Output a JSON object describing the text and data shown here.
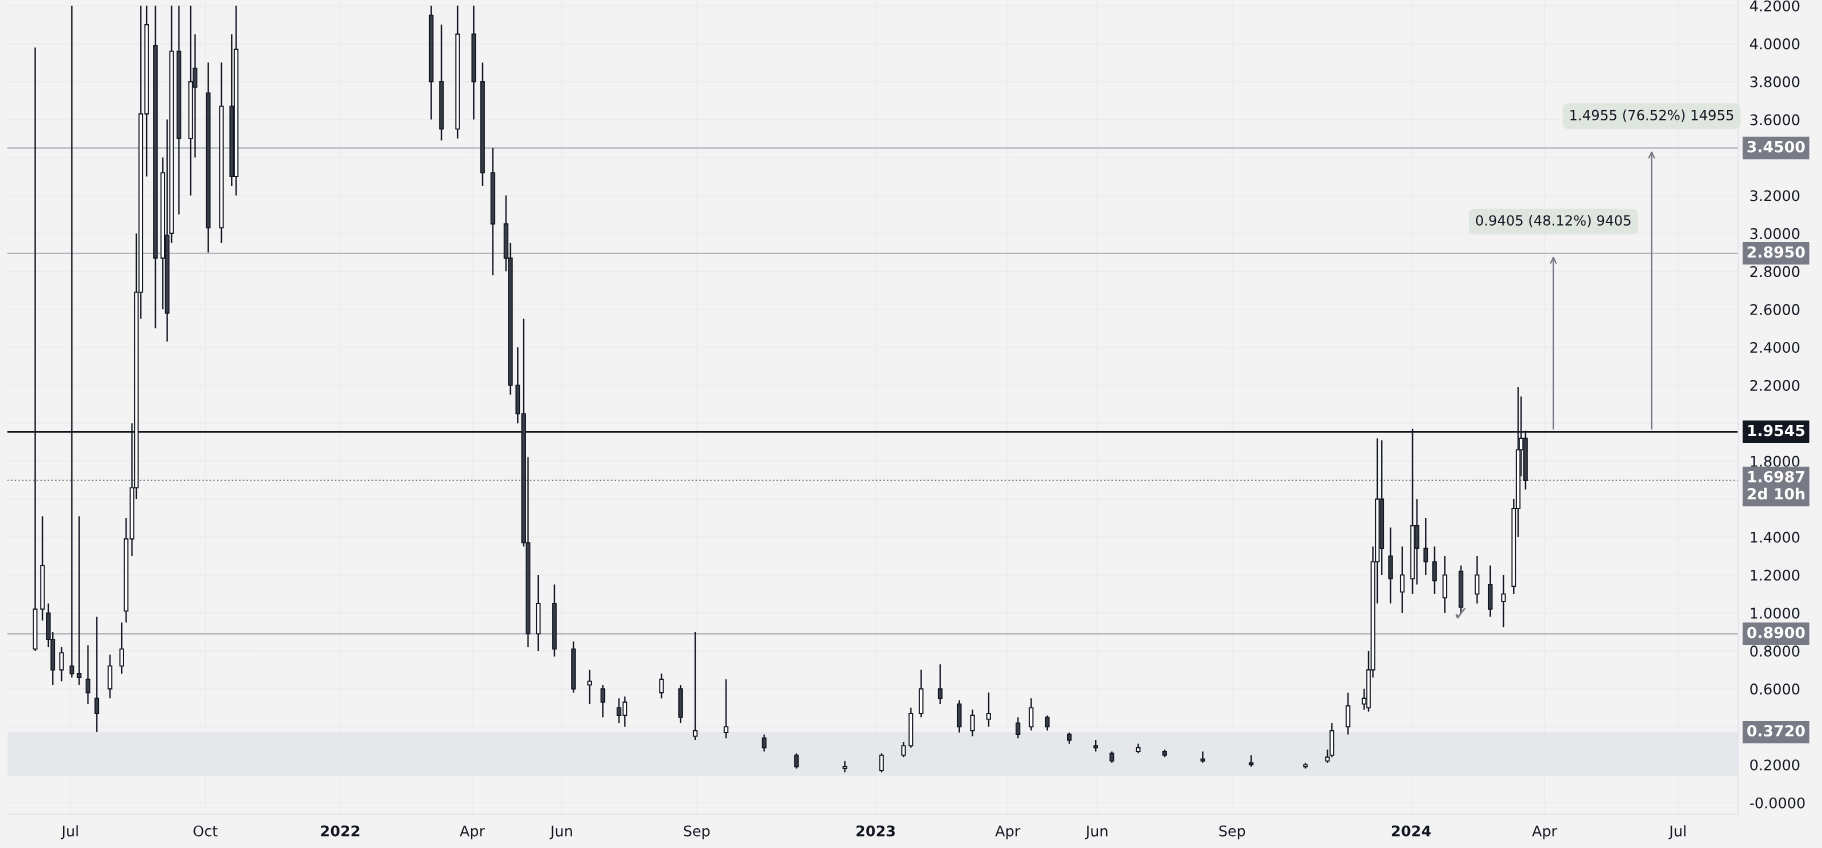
{
  "chart_data": {
    "type": "candlestick",
    "x": [
      "2021-06-07",
      "2021-06-12",
      "2021-06-16",
      "2021-06-19",
      "2021-06-25",
      "2021-07-02",
      "2021-07-07",
      "2021-07-13",
      "2021-07-19",
      "2021-07-28",
      "2021-08-05",
      "2021-08-08",
      "2021-08-12",
      "2021-08-15",
      "2021-08-18",
      "2021-08-22",
      "2021-08-28",
      "2021-09-02",
      "2021-09-05",
      "2021-09-08",
      "2021-09-13",
      "2021-09-21",
      "2021-09-24",
      "2021-10-03",
      "2021-10-12",
      "2021-10-19",
      "2021-10-22",
      "2022-03-04",
      "2022-03-11",
      "2022-03-22",
      "2022-04-02",
      "2022-04-08",
      "2022-04-15",
      "2022-04-24",
      "2022-04-27",
      "2022-05-02",
      "2022-05-06",
      "2022-05-09",
      "2022-05-16",
      "2022-05-27",
      "2022-06-09",
      "2022-06-20",
      "2022-06-29",
      "2022-07-10",
      "2022-07-14",
      "2022-08-08",
      "2022-08-21",
      "2022-08-31",
      "2022-09-21",
      "2022-10-17",
      "2022-11-08",
      "2022-12-11",
      "2023-01-05",
      "2023-01-20",
      "2023-01-25",
      "2023-02-01",
      "2023-02-14",
      "2023-02-27",
      "2023-03-08",
      "2023-03-19",
      "2023-04-08",
      "2023-04-17",
      "2023-04-28",
      "2023-05-13",
      "2023-05-31",
      "2023-06-11",
      "2023-06-29",
      "2023-07-17",
      "2023-08-12",
      "2023-09-14",
      "2023-10-21",
      "2023-11-05",
      "2023-11-08",
      "2023-11-19",
      "2023-11-30",
      "2023-12-03",
      "2023-12-06",
      "2023-12-09",
      "2023-12-12",
      "2023-12-18",
      "2023-12-26",
      "2024-01-02",
      "2024-01-05",
      "2024-01-11",
      "2024-01-17",
      "2024-01-24",
      "2024-02-04",
      "2024-02-15",
      "2024-02-24",
      "2024-03-04",
      "2024-03-11",
      "2024-03-14",
      "2024-03-16",
      "2024-03-19"
    ],
    "ohlc": [
      [
        0.81,
        3.98,
        0.8,
        1.02
      ],
      [
        1.02,
        1.51,
        0.96,
        1.25
      ],
      [
        1.0,
        1.05,
        0.82,
        0.86
      ],
      [
        0.86,
        0.9,
        0.62,
        0.7
      ],
      [
        0.7,
        0.82,
        0.64,
        0.79
      ],
      [
        0.72,
        4.2,
        0.66,
        0.68
      ],
      [
        0.68,
        1.51,
        0.62,
        0.66
      ],
      [
        0.65,
        0.83,
        0.52,
        0.58
      ],
      [
        0.55,
        0.98,
        0.372,
        0.47
      ],
      [
        0.6,
        0.78,
        0.55,
        0.72
      ],
      [
        0.72,
        0.95,
        0.68,
        0.81
      ],
      [
        1.01,
        1.5,
        0.95,
        1.39
      ],
      [
        1.39,
        2.0,
        1.3,
        1.66
      ],
      [
        1.66,
        3.0,
        1.6,
        2.69
      ],
      [
        2.69,
        4.2,
        2.55,
        3.63
      ],
      [
        3.63,
        4.2,
        3.3,
        4.1
      ],
      [
        3.99,
        4.2,
        2.5,
        2.87
      ],
      [
        2.87,
        3.4,
        2.6,
        3.32
      ],
      [
        2.99,
        3.6,
        2.43,
        2.58
      ],
      [
        3.0,
        4.2,
        2.95,
        3.96
      ],
      [
        3.96,
        4.2,
        3.1,
        3.5
      ],
      [
        3.5,
        4.2,
        3.2,
        3.8
      ],
      [
        3.87,
        4.05,
        3.4,
        3.77
      ],
      [
        3.74,
        3.9,
        2.9,
        3.03
      ],
      [
        3.03,
        3.9,
        2.95,
        3.67
      ],
      [
        3.67,
        4.05,
        3.25,
        3.3
      ],
      [
        3.3,
        4.2,
        3.2,
        3.97
      ],
      [
        4.15,
        4.2,
        3.6,
        3.8
      ],
      [
        3.8,
        4.1,
        3.49,
        3.55
      ],
      [
        3.55,
        4.2,
        3.5,
        4.05
      ],
      [
        4.05,
        4.2,
        3.6,
        3.8
      ],
      [
        3.8,
        3.9,
        3.25,
        3.32
      ],
      [
        3.32,
        3.45,
        2.78,
        3.05
      ],
      [
        3.05,
        3.2,
        2.8,
        2.87
      ],
      [
        2.87,
        2.95,
        2.15,
        2.2
      ],
      [
        2.2,
        2.4,
        2.0,
        2.05
      ],
      [
        2.05,
        2.55,
        1.35,
        1.37
      ],
      [
        1.37,
        1.82,
        0.82,
        0.89
      ],
      [
        0.89,
        1.2,
        0.8,
        1.05
      ],
      [
        1.05,
        1.15,
        0.77,
        0.81
      ],
      [
        0.81,
        0.85,
        0.58,
        0.6
      ],
      [
        0.62,
        0.7,
        0.52,
        0.64
      ],
      [
        0.6,
        0.62,
        0.45,
        0.53
      ],
      [
        0.5,
        0.55,
        0.42,
        0.46
      ],
      [
        0.46,
        0.56,
        0.4,
        0.53
      ],
      [
        0.58,
        0.68,
        0.55,
        0.65
      ],
      [
        0.6,
        0.62,
        0.42,
        0.45
      ],
      [
        0.35,
        0.9,
        0.33,
        0.38
      ],
      [
        0.37,
        0.65,
        0.34,
        0.4
      ],
      [
        0.34,
        0.36,
        0.27,
        0.29
      ],
      [
        0.25,
        0.26,
        0.18,
        0.19
      ],
      [
        0.18,
        0.22,
        0.16,
        0.19
      ],
      [
        0.17,
        0.26,
        0.16,
        0.25
      ],
      [
        0.25,
        0.32,
        0.24,
        0.3
      ],
      [
        0.3,
        0.5,
        0.29,
        0.47
      ],
      [
        0.47,
        0.7,
        0.45,
        0.6
      ],
      [
        0.6,
        0.73,
        0.52,
        0.55
      ],
      [
        0.52,
        0.54,
        0.37,
        0.4
      ],
      [
        0.38,
        0.49,
        0.35,
        0.46
      ],
      [
        0.44,
        0.58,
        0.4,
        0.47
      ],
      [
        0.42,
        0.45,
        0.34,
        0.36
      ],
      [
        0.4,
        0.55,
        0.38,
        0.5
      ],
      [
        0.45,
        0.46,
        0.38,
        0.4
      ],
      [
        0.36,
        0.37,
        0.31,
        0.33
      ],
      [
        0.3,
        0.33,
        0.27,
        0.29
      ],
      [
        0.26,
        0.27,
        0.21,
        0.22
      ],
      [
        0.27,
        0.31,
        0.26,
        0.29
      ],
      [
        0.27,
        0.28,
        0.24,
        0.25
      ],
      [
        0.23,
        0.27,
        0.21,
        0.22
      ],
      [
        0.21,
        0.25,
        0.19,
        0.2
      ],
      [
        0.19,
        0.21,
        0.18,
        0.2
      ],
      [
        0.22,
        0.28,
        0.21,
        0.24
      ],
      [
        0.25,
        0.42,
        0.24,
        0.38
      ],
      [
        0.4,
        0.58,
        0.36,
        0.51
      ],
      [
        0.52,
        0.6,
        0.49,
        0.55
      ],
      [
        0.5,
        0.8,
        0.48,
        0.7
      ],
      [
        0.7,
        1.35,
        0.66,
        1.27
      ],
      [
        1.27,
        1.92,
        1.05,
        1.6
      ],
      [
        1.6,
        1.91,
        1.2,
        1.34
      ],
      [
        1.3,
        1.45,
        1.05,
        1.18
      ],
      [
        1.11,
        1.35,
        1.0,
        1.2
      ],
      [
        1.18,
        1.97,
        1.1,
        1.46
      ],
      [
        1.46,
        1.6,
        1.15,
        1.34
      ],
      [
        1.34,
        1.5,
        1.2,
        1.27
      ],
      [
        1.27,
        1.35,
        1.1,
        1.17
      ],
      [
        1.08,
        1.3,
        1.0,
        1.2
      ],
      [
        1.22,
        1.25,
        1.0,
        1.03
      ],
      [
        1.1,
        1.3,
        1.05,
        1.2
      ],
      [
        1.15,
        1.25,
        0.98,
        1.02
      ],
      [
        1.06,
        1.2,
        0.925,
        1.1
      ],
      [
        1.14,
        1.6,
        1.1,
        1.55
      ],
      [
        1.55,
        2.19,
        1.4,
        1.86
      ],
      [
        1.86,
        2.14,
        1.72,
        1.92
      ],
      [
        1.92,
        1.96,
        1.65,
        1.6987
      ]
    ],
    "xlim": [
      "2021-05-19",
      "2024-08-11"
    ],
    "xticks": [
      {
        "value": "2021-07-01",
        "label": "Jul"
      },
      {
        "value": "2021-10-01",
        "label": "Oct"
      },
      {
        "value": "2022-01-01",
        "label": "2022"
      },
      {
        "value": "2022-04-01",
        "label": "Apr"
      },
      {
        "value": "2022-06-01",
        "label": "Jun"
      },
      {
        "value": "2022-09-01",
        "label": "Sep"
      },
      {
        "value": "2023-01-01",
        "label": "2023"
      },
      {
        "value": "2023-04-01",
        "label": "Apr"
      },
      {
        "value": "2023-06-01",
        "label": "Jun"
      },
      {
        "value": "2023-09-01",
        "label": "Sep"
      },
      {
        "value": "2024-01-01",
        "label": "2024"
      },
      {
        "value": "2024-04-01",
        "label": "Apr"
      },
      {
        "value": "2024-07-01",
        "label": "Jul"
      }
    ],
    "ylim": [
      -0.06,
      4.23
    ],
    "yticks": [
      {
        "value": 0,
        "label": "-0.0000"
      },
      {
        "value": 0.2,
        "label": "0.2000"
      },
      {
        "value": 0.4,
        "label": null
      },
      {
        "value": 0.6,
        "label": "0.6000"
      },
      {
        "value": 0.8,
        "label": "0.8000"
      },
      {
        "value": 1.0,
        "label": "1.0000"
      },
      {
        "value": 1.2,
        "label": "1.2000"
      },
      {
        "value": 1.4,
        "label": "1.4000"
      },
      {
        "value": 1.6,
        "label": null
      },
      {
        "value": 1.8,
        "label": "1.8000"
      },
      {
        "value": 2.0,
        "label": null
      },
      {
        "value": 2.2,
        "label": "2.2000"
      },
      {
        "value": 2.4,
        "label": "2.4000"
      },
      {
        "value": 2.6,
        "label": "2.6000"
      },
      {
        "value": 2.8,
        "label": "2.8000"
      },
      {
        "value": 3.0,
        "label": "3.0000"
      },
      {
        "value": 3.2,
        "label": "3.2000"
      },
      {
        "value": 3.4,
        "label": null
      },
      {
        "value": 3.6,
        "label": "3.6000"
      },
      {
        "value": 3.8,
        "label": "3.8000"
      },
      {
        "value": 4.0,
        "label": "4.0000"
      },
      {
        "value": 4.2,
        "label": "4.2000"
      }
    ],
    "grid": true,
    "ref_lines": [
      {
        "axis": "y",
        "value": 3.45,
        "label": "3.4500",
        "color": "#b2b5be",
        "line_style": "solid"
      },
      {
        "axis": "y",
        "value": 2.895,
        "label": "2.8950",
        "color": "#b2b5be",
        "line_style": "solid"
      },
      {
        "axis": "y",
        "value": 1.9545,
        "label": "1.9545",
        "color": "#131722",
        "line_style": "solid"
      },
      {
        "axis": "y",
        "value": 1.6987,
        "label": "1.6987\n2d 10h",
        "color": "#787b86",
        "line_style": "dotted"
      },
      {
        "axis": "y",
        "value": 0.89,
        "label": "0.8900",
        "color": "#b2b5be",
        "line_style": "solid"
      }
    ],
    "bands": [
      {
        "axis": "y",
        "from": 0.142,
        "to": 0.372,
        "label": "0.3720",
        "color": "#e6e7ea"
      }
    ],
    "annotations": [
      {
        "text": "0.9405 (48.12%) 9405",
        "x": "2024-04-07",
        "y": 2.895
      },
      {
        "text": "1.4955 (76.52%) 14955",
        "x": "2024-06-13",
        "y": 3.45
      },
      {
        "text": "✓",
        "x": "2024-02-04",
        "y": 0.99
      }
    ]
  }
}
